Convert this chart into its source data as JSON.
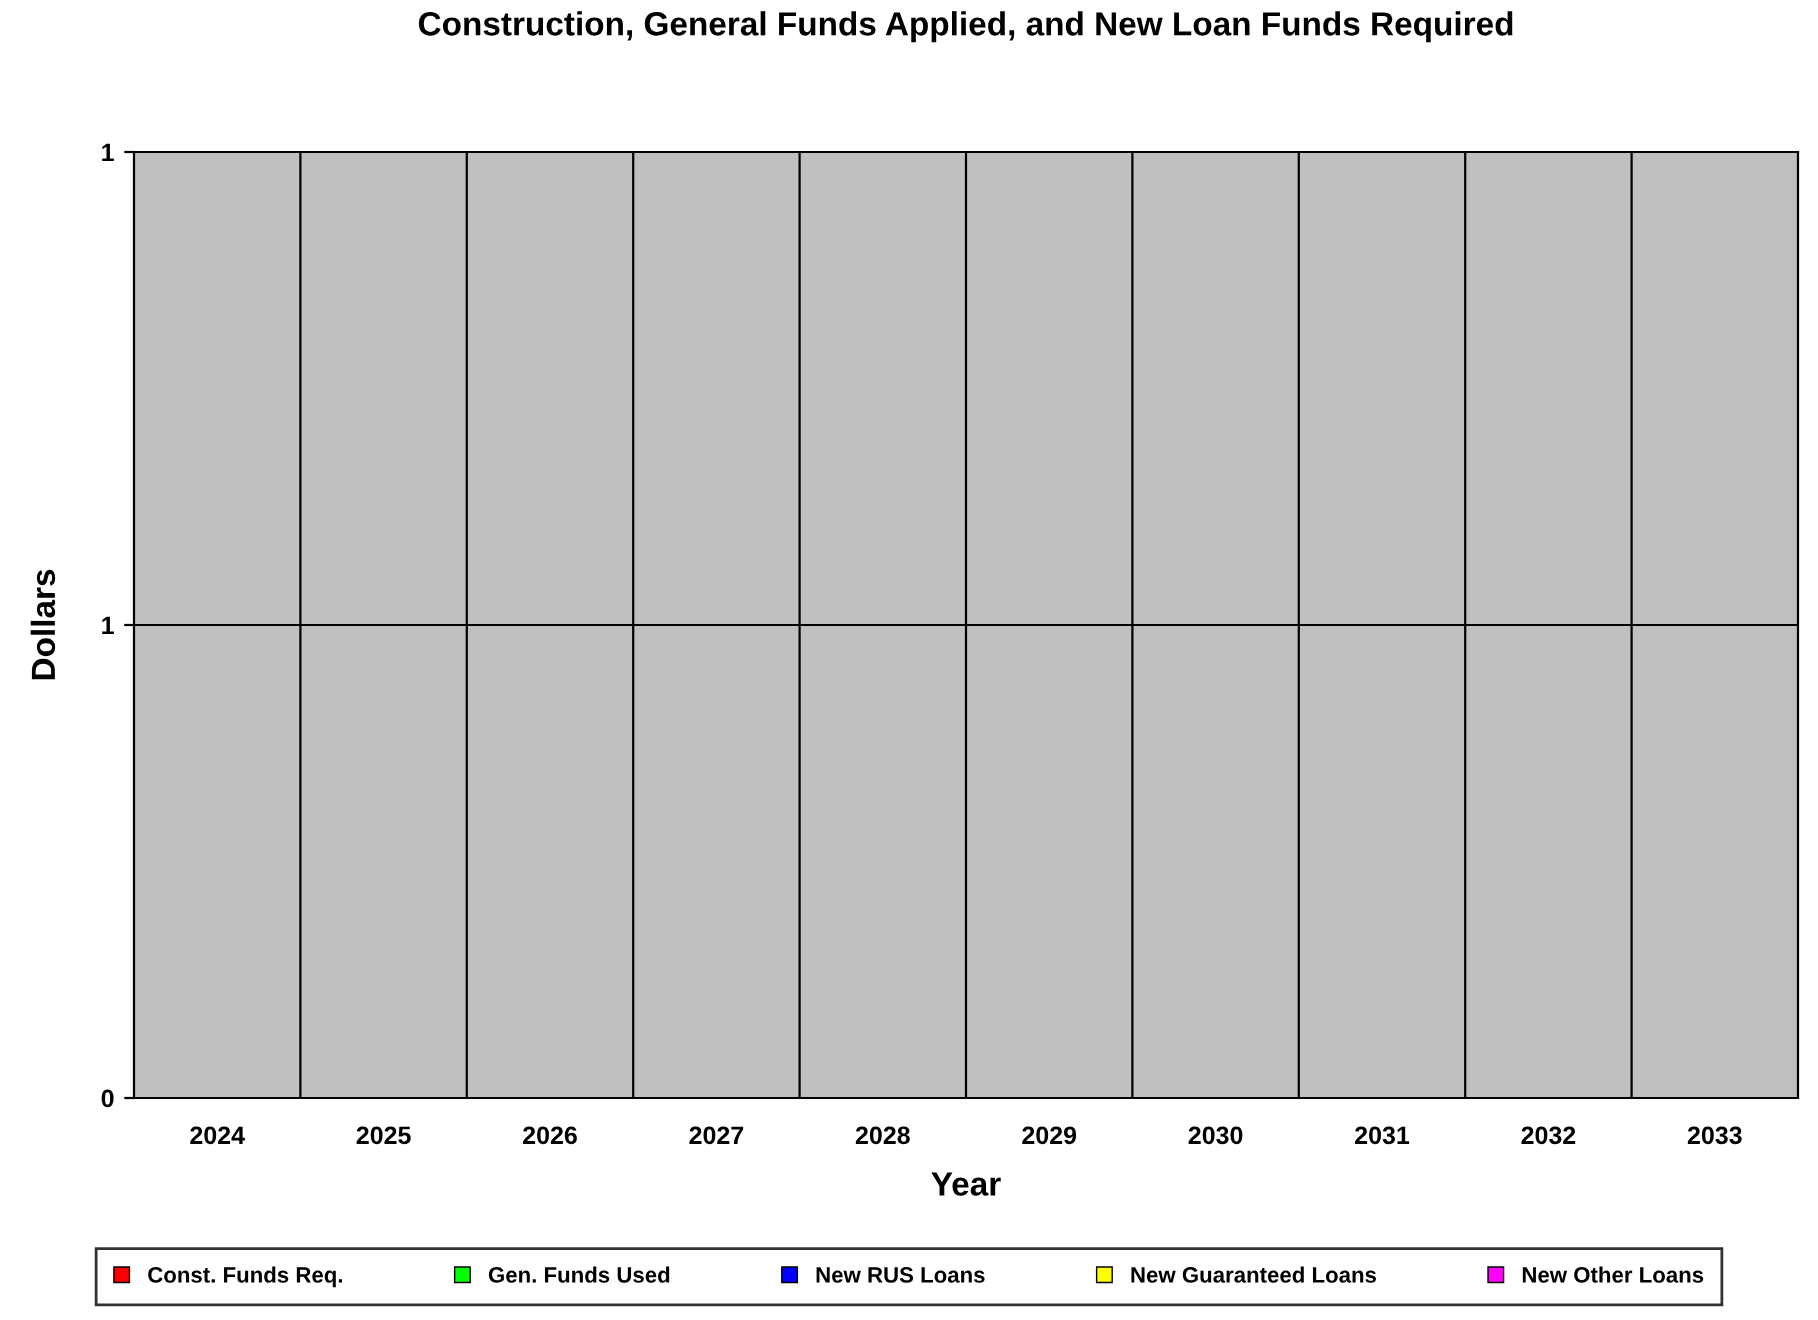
{
  "chart_data": {
    "type": "bar",
    "title": "Construction, General Funds Applied, and New Loan Funds Required",
    "xlabel": "Year",
    "ylabel": "Dollars",
    "categories": [
      "2024",
      "2025",
      "2026",
      "2027",
      "2028",
      "2029",
      "2030",
      "2031",
      "2032",
      "2033"
    ],
    "series": [
      {
        "name": "Const. Funds Req.",
        "color": "#ff0000",
        "values": [
          0,
          0,
          0,
          0,
          0,
          0,
          0,
          0,
          0,
          0
        ]
      },
      {
        "name": "Gen. Funds Used",
        "color": "#00ff00",
        "values": [
          0,
          0,
          0,
          0,
          0,
          0,
          0,
          0,
          0,
          0
        ]
      },
      {
        "name": "New RUS Loans",
        "color": "#0000ff",
        "values": [
          0,
          0,
          0,
          0,
          0,
          0,
          0,
          0,
          0,
          0
        ]
      },
      {
        "name": "New Guaranteed Loans",
        "color": "#ffff00",
        "values": [
          0,
          0,
          0,
          0,
          0,
          0,
          0,
          0,
          0,
          0
        ]
      },
      {
        "name": "New Other Loans",
        "color": "#ff00ff",
        "values": [
          0,
          0,
          0,
          0,
          0,
          0,
          0,
          0,
          0,
          0
        ]
      }
    ],
    "ylim": [
      0,
      1
    ],
    "yticks": [
      0,
      {
        "value": 0.5,
        "label": "1"
      },
      1
    ],
    "grid": "y",
    "legend": "bottom"
  }
}
